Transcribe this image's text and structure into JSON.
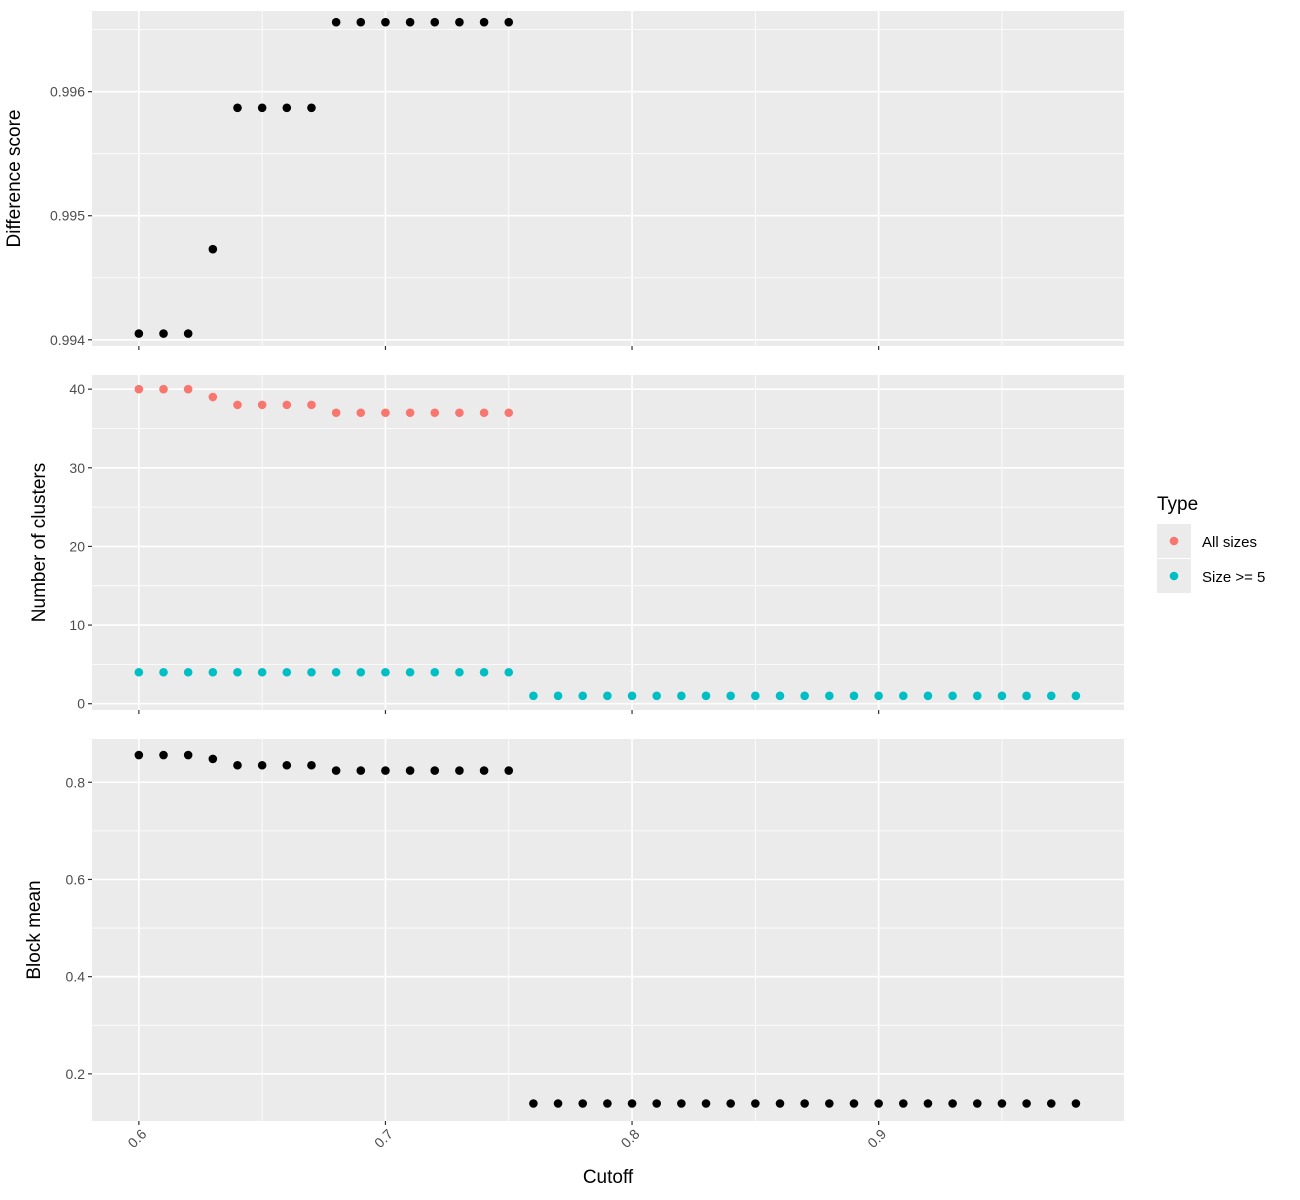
{
  "chart_data": [
    {
      "type": "scatter",
      "ylabel": "Difference score",
      "yticks": [
        "0.994",
        "0.995",
        "0.996"
      ],
      "ylim": [
        0.99395,
        0.99665
      ],
      "series": [
        {
          "color": "#000000",
          "x": [
            0.6,
            0.61,
            0.62,
            0.63,
            0.64,
            0.65,
            0.66,
            0.67,
            0.68,
            0.69,
            0.7,
            0.71,
            0.72,
            0.73,
            0.74,
            0.75
          ],
          "y": [
            0.99405,
            0.99405,
            0.99405,
            0.99473,
            0.99587,
            0.99587,
            0.99587,
            0.99587,
            0.99656,
            0.99656,
            0.99656,
            0.99656,
            0.99656,
            0.99656,
            0.99656,
            0.99656
          ]
        }
      ]
    },
    {
      "type": "scatter",
      "ylabel": "Number of clusters",
      "yticks": [
        "0",
        "10",
        "20",
        "30",
        "40"
      ],
      "ylim": [
        -0.8,
        41.8
      ],
      "series": [
        {
          "name": "All sizes",
          "color": "#F8766D",
          "x": [
            0.6,
            0.61,
            0.62,
            0.63,
            0.64,
            0.65,
            0.66,
            0.67,
            0.68,
            0.69,
            0.7,
            0.71,
            0.72,
            0.73,
            0.74,
            0.75
          ],
          "y": [
            40,
            40,
            40,
            39,
            38,
            38,
            38,
            38,
            37,
            37,
            37,
            37,
            37,
            37,
            37,
            37
          ]
        },
        {
          "name": "Size >= 5",
          "color": "#00BFC4",
          "x": [
            0.6,
            0.61,
            0.62,
            0.63,
            0.64,
            0.65,
            0.66,
            0.67,
            0.68,
            0.69,
            0.7,
            0.71,
            0.72,
            0.73,
            0.74,
            0.75,
            0.76,
            0.77,
            0.78,
            0.79,
            0.8,
            0.81,
            0.82,
            0.83,
            0.84,
            0.85,
            0.86,
            0.87,
            0.88,
            0.89,
            0.9,
            0.91,
            0.92,
            0.93,
            0.94,
            0.95,
            0.96,
            0.97,
            0.98
          ],
          "y": [
            4,
            4,
            4,
            4,
            4,
            4,
            4,
            4,
            4,
            4,
            4,
            4,
            4,
            4,
            4,
            4,
            1,
            1,
            1,
            1,
            1,
            1,
            1,
            1,
            1,
            1,
            1,
            1,
            1,
            1,
            1,
            1,
            1,
            1,
            1,
            1,
            1,
            1,
            1
          ]
        }
      ]
    },
    {
      "type": "scatter",
      "ylabel": "Block mean",
      "yticks": [
        "0.2",
        "0.4",
        "0.6",
        "0.8"
      ],
      "ylim": [
        0.103,
        0.889
      ],
      "series": [
        {
          "color": "#000000",
          "x": [
            0.6,
            0.61,
            0.62,
            0.63,
            0.64,
            0.65,
            0.66,
            0.67,
            0.68,
            0.69,
            0.7,
            0.71,
            0.72,
            0.73,
            0.74,
            0.75,
            0.76,
            0.77,
            0.78,
            0.79,
            0.8,
            0.81,
            0.82,
            0.83,
            0.84,
            0.85,
            0.86,
            0.87,
            0.88,
            0.89,
            0.9,
            0.91,
            0.92,
            0.93,
            0.94,
            0.95,
            0.96,
            0.97,
            0.98
          ],
          "y": [
            0.856,
            0.856,
            0.856,
            0.848,
            0.835,
            0.835,
            0.835,
            0.835,
            0.824,
            0.824,
            0.824,
            0.824,
            0.824,
            0.824,
            0.824,
            0.824,
            0.139,
            0.139,
            0.139,
            0.139,
            0.139,
            0.139,
            0.139,
            0.139,
            0.139,
            0.139,
            0.139,
            0.139,
            0.139,
            0.139,
            0.139,
            0.139,
            0.139,
            0.139,
            0.139,
            0.139,
            0.139,
            0.139,
            0.139
          ]
        }
      ]
    }
  ],
  "x_axis": {
    "label": "Cutoff",
    "ticks": [
      "0.6",
      "0.7",
      "0.8",
      "0.9"
    ],
    "xlim": [
      0.581,
      0.9995
    ]
  },
  "legend": {
    "title": "Type",
    "position": "right",
    "items": [
      {
        "label": "All sizes",
        "color": "#F8766D"
      },
      {
        "label": "Size >= 5",
        "color": "#00BFC4"
      }
    ]
  },
  "colors": {
    "panel_background": "#EBEBEB",
    "grid_line": "#FFFFFF"
  }
}
